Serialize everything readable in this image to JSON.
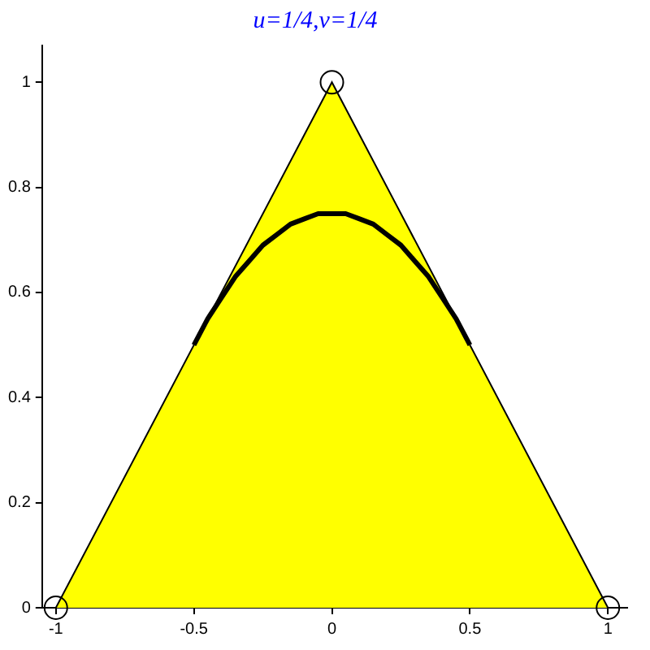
{
  "chart_data": {
    "type": "line",
    "title": "u=1/4,v=1/4",
    "xlim": [
      -1.05,
      1.07
    ],
    "ylim": [
      0,
      1.07
    ],
    "xticks": [
      -1,
      -0.5,
      0,
      0.5,
      1
    ],
    "yticks": [
      0,
      0.2,
      0.4,
      0.6,
      0.8,
      1
    ],
    "grid": false,
    "legend": false,
    "series": [
      {
        "type": "area",
        "color": "#ffff00",
        "x": [
          -1,
          0,
          1
        ],
        "values": [
          0,
          1,
          0
        ]
      },
      {
        "type": "line",
        "color": "#000000",
        "line_style": "solid",
        "marker": "none",
        "x": [
          -0.5,
          -0.45,
          -0.4,
          -0.35,
          -0.3,
          -0.25,
          -0.2,
          -0.15,
          -0.1,
          -0.05,
          0,
          0.05,
          0.1,
          0.15,
          0.2,
          0.25,
          0.3,
          0.35,
          0.4,
          0.45,
          0.5
        ],
        "values": [
          0.5,
          0.55,
          0.59,
          0.63,
          0.66,
          0.69,
          0.71,
          0.73,
          0.74,
          0.75,
          0.75,
          0.75,
          0.74,
          0.73,
          0.71,
          0.69,
          0.66,
          0.63,
          0.59,
          0.55,
          0.5
        ]
      },
      {
        "type": "scatter",
        "color": "#000000",
        "marker": "circle",
        "x": [
          -1,
          0,
          1
        ],
        "values": [
          0,
          1,
          0
        ]
      }
    ]
  }
}
